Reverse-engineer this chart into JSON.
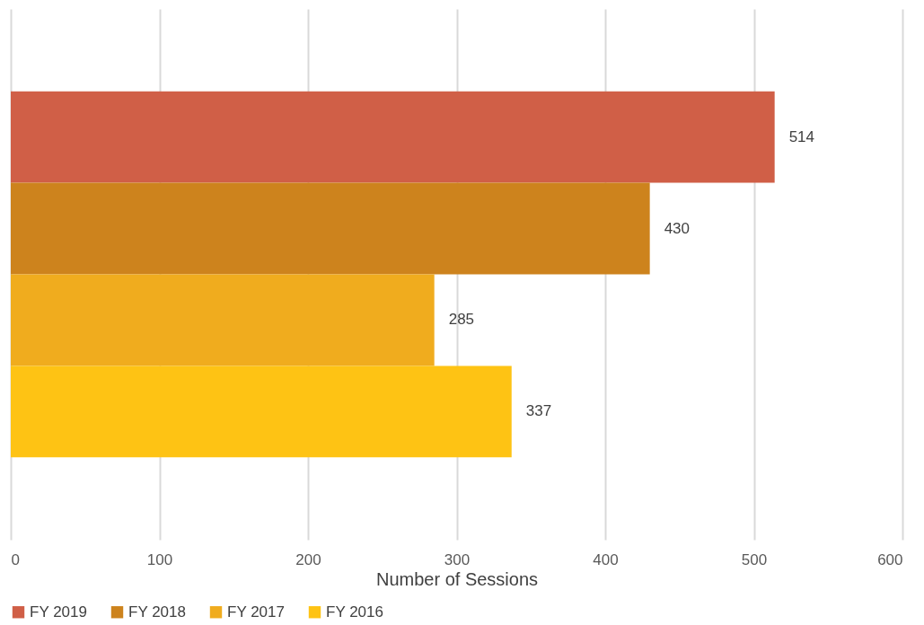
{
  "chart_data": {
    "type": "bar",
    "orientation": "horizontal",
    "categories": [
      null
    ],
    "series": [
      {
        "name": "FY 2019",
        "color": "#d05f47",
        "values": [
          514
        ]
      },
      {
        "name": "FY 2018",
        "color": "#cd831d",
        "values": [
          430
        ]
      },
      {
        "name": "FY 2017",
        "color": "#f0ac1e",
        "values": [
          285
        ]
      },
      {
        "name": "FY 2016",
        "color": "#fec314",
        "values": [
          337
        ]
      }
    ],
    "xlabel": "Number of Sessions",
    "xlim": [
      0,
      600
    ],
    "xticks": [
      0,
      100,
      200,
      300,
      400,
      500,
      600
    ],
    "grid": "x",
    "legend": "bottom",
    "data_labels": true
  }
}
